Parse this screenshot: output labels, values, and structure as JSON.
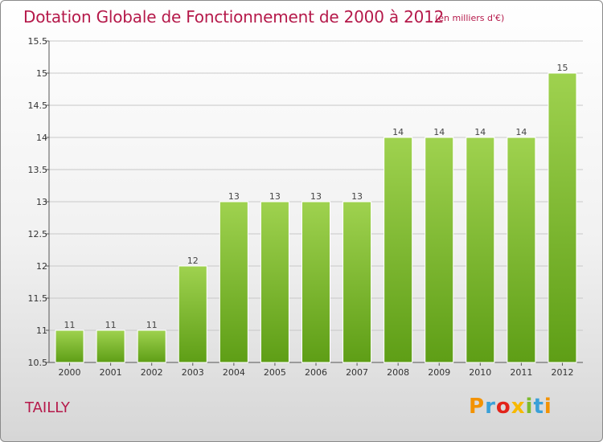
{
  "header": {
    "title": "Dotation Globale de Fonctionnement de 2000 à 2012",
    "unit_note": "(en milliers d'€)"
  },
  "footer": {
    "commune": "TAILLY",
    "logo_text": "Proxiti"
  },
  "colors": {
    "title": "#b5194a",
    "bar_top": "#9fd24f",
    "bar_bottom": "#5e9e16",
    "grid": "#c8c8c8"
  },
  "chart_data": {
    "type": "bar",
    "categories": [
      "2000",
      "2001",
      "2002",
      "2003",
      "2004",
      "2005",
      "2006",
      "2007",
      "2008",
      "2009",
      "2010",
      "2011",
      "2012"
    ],
    "values": [
      11,
      11,
      11,
      12,
      13,
      13,
      13,
      13,
      14,
      14,
      14,
      14,
      15
    ],
    "value_labels": [
      "11",
      "11",
      "11",
      "12",
      "13",
      "13",
      "13",
      "13",
      "14",
      "14",
      "14",
      "14",
      "15"
    ],
    "y_ticks": [
      "10.5",
      "11",
      "11.5",
      "12",
      "12.5",
      "13",
      "13.5",
      "14",
      "14.5",
      "15",
      "15.5"
    ],
    "ylim": [
      10.5,
      15.5
    ],
    "title": "Dotation Globale de Fonctionnement de 2000 à 2012",
    "xlabel": "",
    "ylabel": "",
    "grid": true,
    "legend": "none"
  }
}
